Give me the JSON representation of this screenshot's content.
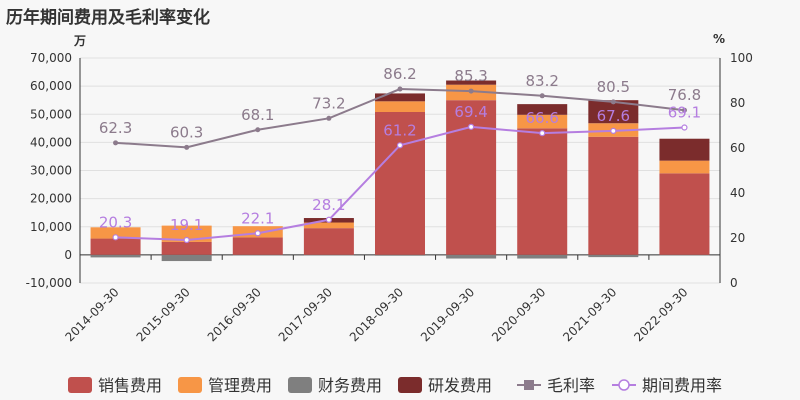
{
  "title": "历年期间费用及毛利率变化",
  "left_unit": "万",
  "right_unit": "%",
  "chart_data": {
    "type": "bar",
    "title": "历年期间费用及毛利率变化",
    "categories": [
      "2014-09-30",
      "2015-09-30",
      "2016-09-30",
      "2017-09-30",
      "2018-09-30",
      "2019-09-30",
      "2020-09-30",
      "2021-09-30",
      "2022-09-30"
    ],
    "y_left": {
      "unit": "万",
      "ylim": [
        -10000,
        70000
      ],
      "ticks": [
        "-10,000",
        "0",
        "10,000",
        "20,000",
        "30,000",
        "40,000",
        "50,000",
        "60,000",
        "70,000"
      ]
    },
    "y_right": {
      "unit": "%",
      "ylim": [
        0,
        100
      ],
      "ticks": [
        "0",
        "20",
        "40",
        "60",
        "80",
        "100"
      ]
    },
    "stack_series": [
      {
        "name": "销售费用",
        "color": "#c0504d",
        "values": [
          5800,
          4600,
          6200,
          9500,
          50800,
          55000,
          45000,
          42000,
          29000
        ]
      },
      {
        "name": "管理费用",
        "color": "#f79646",
        "values": [
          4000,
          5800,
          4000,
          2000,
          3800,
          5500,
          4800,
          4800,
          4500
        ]
      },
      {
        "name": "财务费用",
        "color": "#7f7f7f",
        "values": [
          -900,
          -2200,
          -200,
          -200,
          -300,
          -1300,
          -1300,
          -800,
          -200
        ]
      },
      {
        "name": "研发费用",
        "color": "#7b2c2c",
        "values": [
          0,
          0,
          0,
          1600,
          2800,
          1500,
          3800,
          8200,
          7800
        ]
      }
    ],
    "line_series": [
      {
        "name": "毛利率",
        "color": "#8c7b8c",
        "values": [
          62.3,
          60.3,
          68.1,
          73.2,
          86.2,
          85.3,
          83.2,
          80.5,
          76.8
        ]
      },
      {
        "name": "期间费用率",
        "color": "#b57ee0",
        "values": [
          20.3,
          19.1,
          22.1,
          28.1,
          61.2,
          69.4,
          66.6,
          67.6,
          69.1
        ]
      }
    ],
    "legend_position": "bottom"
  }
}
